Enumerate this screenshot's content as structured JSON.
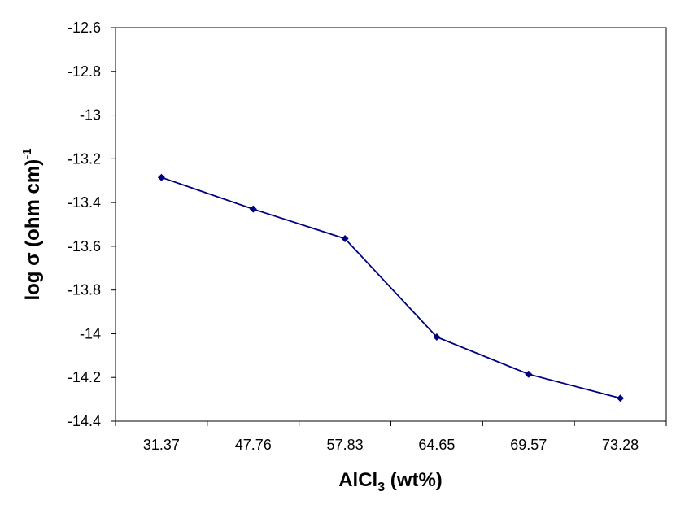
{
  "chart_data": {
    "type": "line",
    "categories": [
      "31.37",
      "47.76",
      "57.83",
      "64.65",
      "69.57",
      "73.28"
    ],
    "series": [
      {
        "values": [
          -13.285,
          -13.43,
          -13.565,
          -14.015,
          -14.185,
          -14.295
        ]
      }
    ],
    "ylim": [
      -14.4,
      -12.6
    ],
    "yticks": [
      "-12.6",
      "-12.8",
      "-13",
      "-13.2",
      "-13.4",
      "-13.6",
      "-13.8",
      "-14",
      "-14.2",
      "-14.4"
    ],
    "ylabel": {
      "main": "log σ (ohm cm)",
      "sup": "-1"
    },
    "xlabel": {
      "main": "AlCl",
      "sub": "3",
      "tail": " (wt%)"
    },
    "grid": false,
    "legend": "none",
    "line_color": "#000080",
    "marker_color": "#000080",
    "marker": "diamond"
  }
}
